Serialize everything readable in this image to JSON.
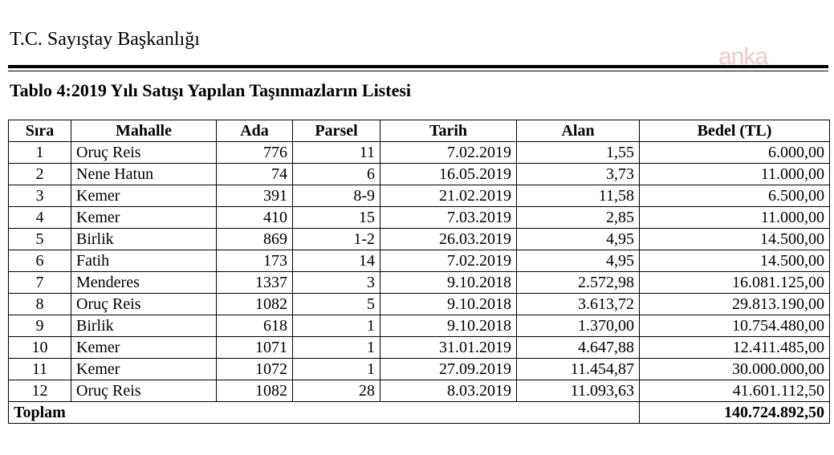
{
  "header": {
    "institution": "T.C. Sayıştay Başkanlığı",
    "watermark": "anka"
  },
  "table_title": "Tablo 4:2019 Yılı Satışı Yapılan Taşınmazların Listesi",
  "columns": [
    "Sıra",
    "Mahalle",
    "Ada",
    "Parsel",
    "Tarih",
    "Alan",
    "Bedel (TL)"
  ],
  "rows": [
    {
      "sira": "1",
      "mahalle": "Oruç Reis",
      "ada": "776",
      "parsel": "11",
      "tarih": "7.02.2019",
      "alan": "1,55",
      "bedel": "6.000,00"
    },
    {
      "sira": "2",
      "mahalle": "Nene Hatun",
      "ada": "74",
      "parsel": "6",
      "tarih": "16.05.2019",
      "alan": "3,73",
      "bedel": "11.000,00"
    },
    {
      "sira": "3",
      "mahalle": "Kemer",
      "ada": "391",
      "parsel": "8-9",
      "tarih": "21.02.2019",
      "alan": "11,58",
      "bedel": "6.500,00"
    },
    {
      "sira": "4",
      "mahalle": "Kemer",
      "ada": "410",
      "parsel": "15",
      "tarih": "7.03.2019",
      "alan": "2,85",
      "bedel": "11.000,00"
    },
    {
      "sira": "5",
      "mahalle": "Birlik",
      "ada": "869",
      "parsel": "1-2",
      "tarih": "26.03.2019",
      "alan": "4,95",
      "bedel": "14.500,00"
    },
    {
      "sira": "6",
      "mahalle": "Fatih",
      "ada": "173",
      "parsel": "14",
      "tarih": "7.02.2019",
      "alan": "4,95",
      "bedel": "14.500,00"
    },
    {
      "sira": "7",
      "mahalle": "Menderes",
      "ada": "1337",
      "parsel": "3",
      "tarih": "9.10.2018",
      "alan": "2.572,98",
      "bedel": "16.081.125,00"
    },
    {
      "sira": "8",
      "mahalle": "Oruç Reis",
      "ada": "1082",
      "parsel": "5",
      "tarih": "9.10.2018",
      "alan": "3.613,72",
      "bedel": "29.813.190,00"
    },
    {
      "sira": "9",
      "mahalle": "Birlik",
      "ada": "618",
      "parsel": "1",
      "tarih": "9.10.2018",
      "alan": "1.370,00",
      "bedel": "10.754.480,00"
    },
    {
      "sira": "10",
      "mahalle": "Kemer",
      "ada": "1071",
      "parsel": "1",
      "tarih": "31.01.2019",
      "alan": "4.647,88",
      "bedel": "12.411.485,00"
    },
    {
      "sira": "11",
      "mahalle": "Kemer",
      "ada": "1072",
      "parsel": "1",
      "tarih": "27.09.2019",
      "alan": "11.454,87",
      "bedel": "30.000.000,00"
    },
    {
      "sira": "12",
      "mahalle": "Oruç Reis",
      "ada": "1082",
      "parsel": "28",
      "tarih": "8.03.2019",
      "alan": "11.093,63",
      "bedel": "41.601.112,50"
    }
  ],
  "total": {
    "label": "Toplam",
    "value": "140.724.892,50"
  }
}
